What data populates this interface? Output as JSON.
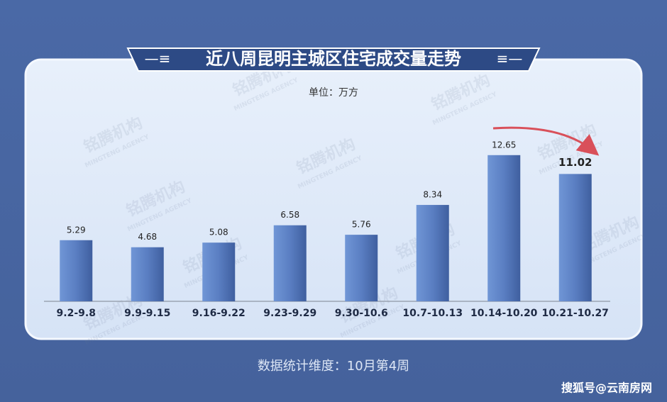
{
  "chart_data": {
    "type": "bar",
    "title": "近八周昆明主城区住宅成交量走势",
    "unit": "单位：万方",
    "categories": [
      "9.2-9.8",
      "9.9-9.15",
      "9.16-9.22",
      "9.23-9.29",
      "9.30-10.6",
      "10.7-10.13",
      "10.14-10.20",
      "10.21-10.27"
    ],
    "values": [
      5.29,
      4.68,
      5.08,
      6.58,
      5.76,
      8.34,
      12.65,
      11.02
    ],
    "color": "#5a7ec2",
    "footer": "数据统计维度：10月第4周",
    "watermark": "搜狐号@云南房网",
    "background_watermark": "铭腾机构",
    "background_watermark_en": "MINGTENG AGENCY"
  }
}
